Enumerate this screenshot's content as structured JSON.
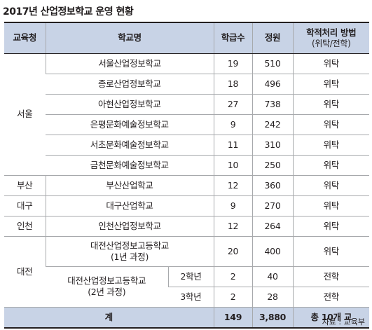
{
  "title": "2017년 산업정보학교 운영 현황",
  "headers": {
    "office": "교육청",
    "school": "학교명",
    "classes": "학급수",
    "capacity": "정원",
    "method": "학적처리 방법",
    "method_sub": "(위탁/전학)"
  },
  "regions": {
    "seoul": "서울",
    "busan": "부산",
    "daegu": "대구",
    "incheon": "인천",
    "daejeon": "대전"
  },
  "rows": [
    {
      "school": "서울산업정보학교",
      "classes": "19",
      "capacity": "510",
      "method": "위탁"
    },
    {
      "school": "종로산업정보학교",
      "classes": "18",
      "capacity": "496",
      "method": "위탁"
    },
    {
      "school": "아현산업정보학교",
      "classes": "27",
      "capacity": "738",
      "method": "위탁"
    },
    {
      "school": "은평문화예술정보학교",
      "classes": "9",
      "capacity": "242",
      "method": "위탁"
    },
    {
      "school": "서초문화예술정보학교",
      "classes": "11",
      "capacity": "310",
      "method": "위탁"
    },
    {
      "school": "금천문화예술정보학교",
      "classes": "10",
      "capacity": "250",
      "method": "위탁"
    },
    {
      "school": "부산산업학교",
      "classes": "12",
      "capacity": "360",
      "method": "위탁"
    },
    {
      "school": "대구산업학교",
      "classes": "9",
      "capacity": "270",
      "method": "위탁"
    },
    {
      "school": "인천산업정보학교",
      "classes": "12",
      "capacity": "264",
      "method": "위탁"
    }
  ],
  "daejeon": {
    "school1_line1": "대전산업정보고등학교",
    "school1_line2": "(1년 과정)",
    "school1_classes": "20",
    "school1_capacity": "400",
    "school1_method": "위탁",
    "school2_line1": "대전산업정보고등학교",
    "school2_line2": "(2년 과정)",
    "grade2": "2학년",
    "grade2_classes": "2",
    "grade2_capacity": "40",
    "grade2_method": "전학",
    "grade3": "3학년",
    "grade3_classes": "2",
    "grade3_capacity": "28",
    "grade3_method": "전학"
  },
  "total": {
    "label": "계",
    "classes": "149",
    "capacity": "3,880",
    "schools": "총 10개 교"
  },
  "source": "자료 : 교육부"
}
